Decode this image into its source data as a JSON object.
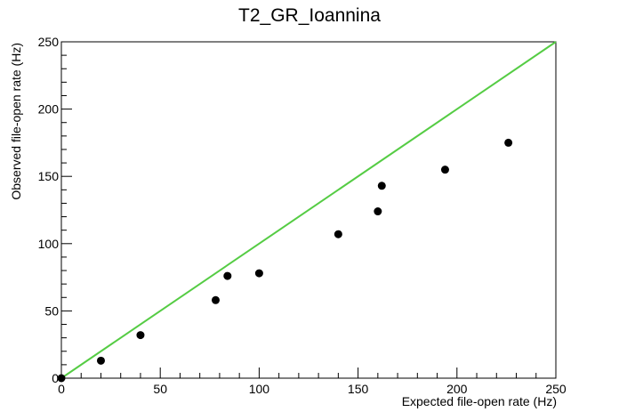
{
  "chart_data": {
    "type": "scatter",
    "title": "T2_GR_Ioannina",
    "xlabel": "Expected file-open rate (Hz)",
    "ylabel": "Observed file-open rate (Hz)",
    "xlim": [
      0,
      250
    ],
    "ylim": [
      0,
      250
    ],
    "x_ticks": [
      0,
      50,
      100,
      150,
      200,
      250
    ],
    "y_ticks": [
      0,
      50,
      100,
      150,
      200,
      250
    ],
    "grid": false,
    "points": [
      {
        "x": 0,
        "y": 0
      },
      {
        "x": 20,
        "y": 13
      },
      {
        "x": 40,
        "y": 32
      },
      {
        "x": 78,
        "y": 58
      },
      {
        "x": 84,
        "y": 76
      },
      {
        "x": 100,
        "y": 78
      },
      {
        "x": 140,
        "y": 107
      },
      {
        "x": 160,
        "y": 124
      },
      {
        "x": 162,
        "y": 143
      },
      {
        "x": 194,
        "y": 155
      },
      {
        "x": 226,
        "y": 175
      }
    ],
    "reference_line": {
      "x": [
        0,
        250
      ],
      "y": [
        0,
        250
      ]
    },
    "colors": {
      "points": "#000000",
      "reference_line": "#55cc44",
      "axes": "#000000"
    }
  }
}
